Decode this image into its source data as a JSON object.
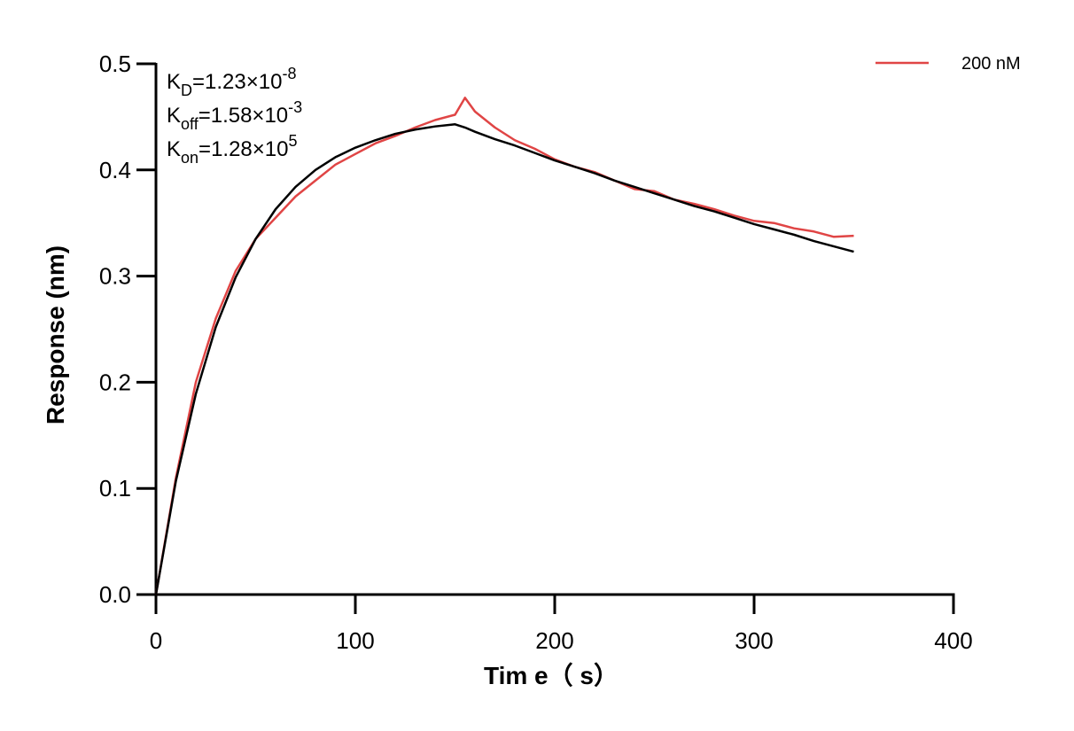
{
  "chart_data": {
    "type": "line",
    "xlabel": "Tim e（ s）",
    "ylabel": "Response (nm)",
    "x": [
      0,
      10,
      20,
      30,
      40,
      50,
      60,
      70,
      80,
      90,
      100,
      110,
      120,
      130,
      140,
      150,
      155,
      160,
      170,
      180,
      190,
      200,
      210,
      220,
      230,
      240,
      250,
      260,
      270,
      280,
      290,
      300,
      310,
      320,
      330,
      340,
      350
    ],
    "series": [
      {
        "name": "200 nM",
        "color": "#e04545",
        "values": [
          0,
          0.11,
          0.2,
          0.26,
          0.305,
          0.335,
          0.355,
          0.375,
          0.39,
          0.405,
          0.415,
          0.425,
          0.432,
          0.44,
          0.447,
          0.452,
          0.468,
          0.455,
          0.44,
          0.428,
          0.42,
          0.41,
          0.403,
          0.398,
          0.39,
          0.382,
          0.38,
          0.372,
          0.368,
          0.363,
          0.357,
          0.352,
          0.35,
          0.345,
          0.342,
          0.337,
          0.338
        ]
      },
      {
        "color": "#000000",
        "values": [
          0,
          0.107,
          0.189,
          0.252,
          0.299,
          0.335,
          0.363,
          0.384,
          0.4,
          0.412,
          0.421,
          0.428,
          0.434,
          0.438,
          0.441,
          0.443,
          0.44,
          0.436,
          0.429,
          0.423,
          0.416,
          0.409,
          0.403,
          0.397,
          0.39,
          0.384,
          0.378,
          0.372,
          0.366,
          0.361,
          0.355,
          0.349,
          0.344,
          0.339,
          0.333,
          0.328,
          0.323
        ]
      }
    ],
    "xlim": [
      0,
      400
    ],
    "xticks": [
      0,
      100,
      200,
      300,
      400
    ],
    "ylim": [
      0,
      0.5
    ],
    "yticks": [
      {
        "value": 0,
        "label": "0.0"
      },
      0.1,
      0.2,
      0.3,
      0.4,
      0.5
    ],
    "legend": "upper right",
    "annotations": [
      {
        "base": "K",
        "sub": "D",
        "text": "=1.23×10",
        "sup": "-8"
      },
      {
        "base": "K",
        "sub": "off",
        "text": "=1.58×10",
        "sup": "-3"
      },
      {
        "base": "K",
        "sub": "on",
        "text": "=1.28×10",
        "sup": "5"
      }
    ]
  }
}
